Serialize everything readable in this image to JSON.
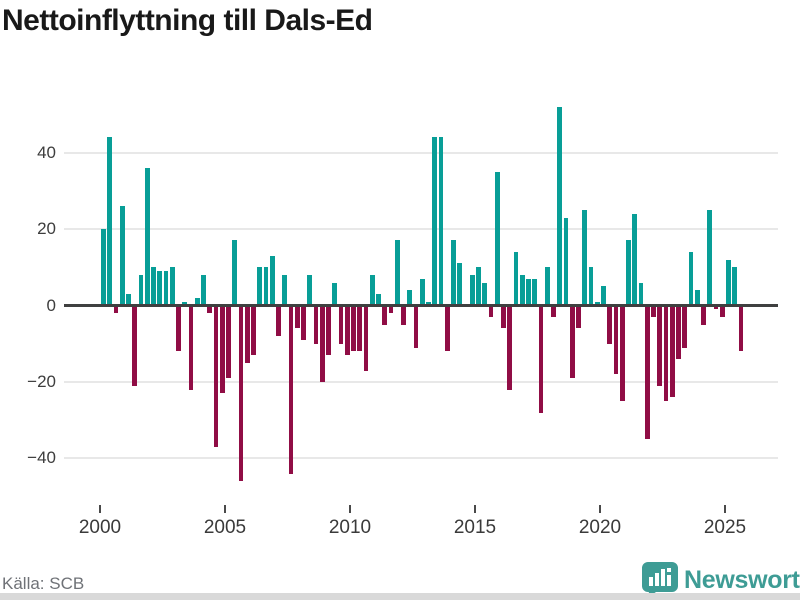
{
  "title": "Nettoinflyttning till Dals-Ed",
  "footer": {
    "source": "Källa: SCB",
    "brand": "Newsworthy"
  },
  "chart_data": {
    "type": "bar",
    "title": "Nettoinflyttning till Dals-Ed",
    "xlabel": "",
    "ylabel": "",
    "x_tick_labels": [
      "2000",
      "2005",
      "2010",
      "2015",
      "2020",
      "2025"
    ],
    "yticks": [
      40,
      20,
      0,
      -20,
      -40
    ],
    "ylim": [
      -50,
      55
    ],
    "grid": "horizontal",
    "frequency": "quarterly",
    "start_year": 2000,
    "start_quarter": 1,
    "values": [
      20,
      44,
      -2,
      26,
      3,
      -21,
      8,
      36,
      10,
      9,
      9,
      10,
      -12,
      1,
      -22,
      2,
      8,
      -2,
      -37,
      -23,
      -19,
      17,
      -46,
      -15,
      -13,
      10,
      10,
      13,
      -8,
      8,
      -44,
      -6,
      -9,
      8,
      -10,
      -20,
      -13,
      6,
      -10,
      -13,
      -12,
      -12,
      -17,
      8,
      3,
      -5,
      -2,
      17,
      -5,
      4,
      -11,
      7,
      1,
      44,
      44,
      -12,
      17,
      11,
      0,
      8,
      10,
      6,
      -3,
      35,
      -6,
      -22,
      14,
      8,
      7,
      7,
      -28,
      10,
      -3,
      52,
      23,
      -19,
      -6,
      25,
      10,
      1,
      5,
      -10,
      -18,
      -25,
      17,
      24,
      6,
      -35,
      -3,
      -21,
      -25,
      -24,
      -14,
      -11,
      14,
      4,
      -5,
      25,
      -1,
      -3,
      12,
      10,
      -12
    ],
    "colors": {
      "positive": "#089e97",
      "negative": "#900d45",
      "zero_axis": "#3f4040",
      "grid": "#e8e8e8",
      "title_text": "#191919",
      "axis_text": "#3a3a3a",
      "source_text": "#6f7277",
      "brand_teal": "#3e9c95"
    }
  }
}
